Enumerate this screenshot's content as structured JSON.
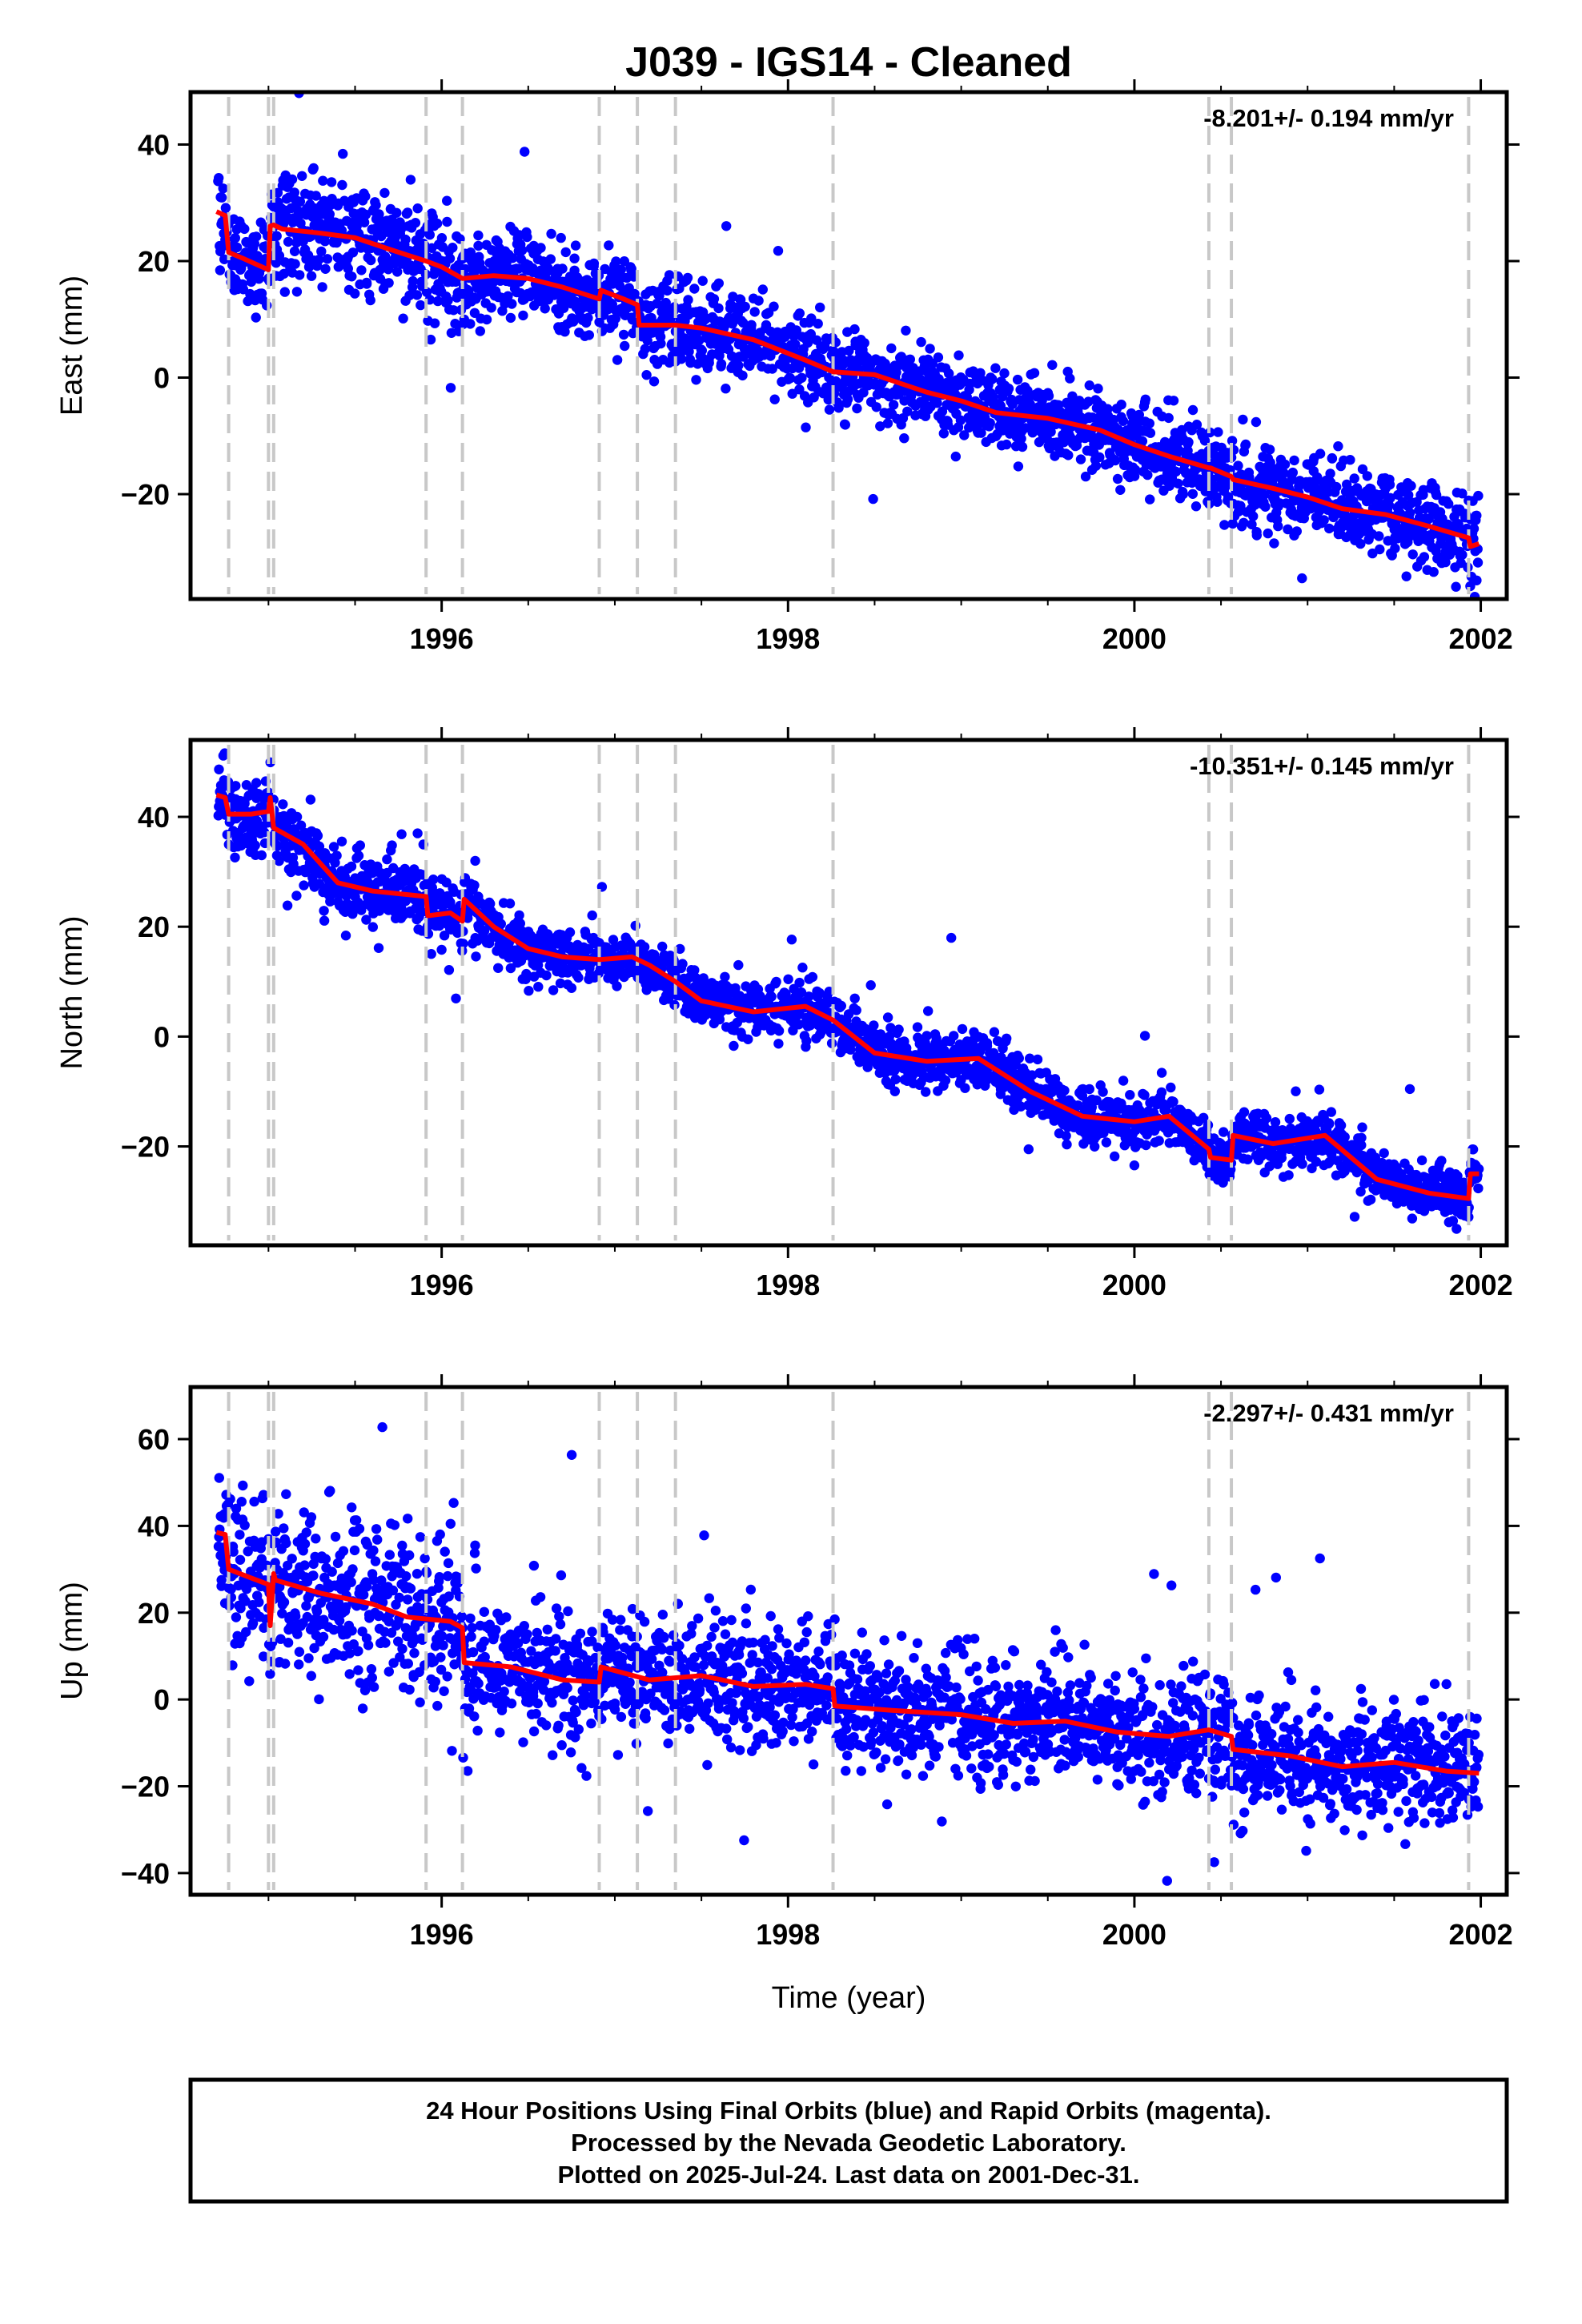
{
  "title": "J039  - IGS14 - Cleaned",
  "xlabel": "Time (year)",
  "footer": [
    "24 Hour Positions Using Final Orbits (blue) and Rapid Orbits (magenta).",
    "Processed by the Nevada Geodetic Laboratory.",
    "Plotted on 2025-Jul-24. Last data on 2001-Dec-31."
  ],
  "colors": {
    "points": "#0000ff",
    "model": "#ff0000",
    "steps": "#c8c8c8",
    "frame": "#000000"
  },
  "chart_data": [
    {
      "type": "scatter",
      "ylabel": "East (mm)",
      "rate_label": "-8.201+/- 0.194 mm/yr",
      "xlim": [
        1994.55,
        2002.15
      ],
      "ylim": [
        -38,
        49
      ],
      "x_ticks": [
        1996,
        1998,
        2000,
        2002
      ],
      "y_ticks": [
        -20,
        0,
        20,
        40
      ],
      "step_epochs": [
        1994.77,
        1995.0,
        1995.03,
        1995.91,
        1996.12,
        1996.91,
        1997.13,
        1997.35,
        1998.26,
        2000.43,
        2000.56,
        2001.93
      ],
      "model": {
        "x": [
          1994.7,
          1994.75,
          1994.77,
          1994.85,
          1995.0,
          1995.01,
          1995.03,
          1995.08,
          1995.3,
          1995.5,
          1995.7,
          1995.91,
          1996.0,
          1996.12,
          1996.3,
          1996.5,
          1996.7,
          1996.91,
          1996.92,
          1997.05,
          1997.13,
          1997.14,
          1997.35,
          1997.5,
          1997.8,
          1998.1,
          1998.26,
          1998.5,
          1998.8,
          1999.0,
          1999.2,
          1999.5,
          1999.8,
          2000.0,
          2000.2,
          2000.43,
          2000.44,
          2000.56,
          2000.57,
          2000.8,
          2001.0,
          2001.2,
          2001.45,
          2001.7,
          2001.93,
          2001.94,
          2001.99
        ],
        "y": [
          28.5,
          27.8,
          21.5,
          20.5,
          18.5,
          26.0,
          26.2,
          25.5,
          24.8,
          24.0,
          22.0,
          20.0,
          19.0,
          17.0,
          17.5,
          17.0,
          15.5,
          13.5,
          15.0,
          13.5,
          12.5,
          9.0,
          9.0,
          8.5,
          6.5,
          3.0,
          1.0,
          0.5,
          -2.5,
          -4.0,
          -6.0,
          -7.0,
          -9.0,
          -11.5,
          -13.5,
          -15.5,
          -15.5,
          -17.0,
          -17.5,
          -19.0,
          -20.5,
          -22.5,
          -23.5,
          -25.5,
          -27.5,
          -29.0,
          -28.5
        ]
      },
      "points_summary": {
        "description": "daily positions",
        "count_approx": 2500,
        "scatter_mm": 3.5
      }
    },
    {
      "type": "scatter",
      "ylabel": "North (mm)",
      "rate_label": "-10.351+/- 0.145 mm/yr",
      "xlim": [
        1994.55,
        2002.15
      ],
      "ylim": [
        -38,
        54
      ],
      "x_ticks": [
        1996,
        1998,
        2000,
        2002
      ],
      "y_ticks": [
        -20,
        0,
        20,
        40
      ],
      "step_epochs": [
        1994.77,
        1995.0,
        1995.03,
        1995.91,
        1996.12,
        1996.91,
        1997.13,
        1997.35,
        1998.26,
        2000.43,
        2000.56,
        2001.93
      ],
      "model": {
        "x": [
          1994.7,
          1994.75,
          1994.77,
          1994.9,
          1995.0,
          1995.01,
          1995.03,
          1995.2,
          1995.4,
          1995.6,
          1995.91,
          1995.92,
          1996.05,
          1996.12,
          1996.13,
          1996.3,
          1996.5,
          1996.7,
          1996.91,
          1997.1,
          1997.2,
          1997.35,
          1997.5,
          1997.8,
          1998.1,
          1998.26,
          1998.5,
          1998.8,
          1999.1,
          1999.4,
          1999.7,
          2000.0,
          2000.2,
          2000.43,
          2000.44,
          2000.56,
          2000.57,
          2000.8,
          2001.1,
          2001.4,
          2001.7,
          2001.93,
          2001.94,
          2001.99
        ],
        "y": [
          44.0,
          43.5,
          40.5,
          40.5,
          41.0,
          43.5,
          38.0,
          35.0,
          28.0,
          26.5,
          25.5,
          22.0,
          22.5,
          21.0,
          25.0,
          20.0,
          16.0,
          14.5,
          14.0,
          14.5,
          13.0,
          10.0,
          6.5,
          4.5,
          5.5,
          3.0,
          -3.0,
          -4.5,
          -4.0,
          -10.0,
          -14.5,
          -15.5,
          -14.5,
          -20.5,
          -22.0,
          -22.5,
          -18.0,
          -19.5,
          -18.0,
          -26.0,
          -28.5,
          -29.5,
          -25.0,
          -25.0
        ]
      },
      "points_summary": {
        "description": "daily positions",
        "count_approx": 2500,
        "scatter_mm": 2.5
      }
    },
    {
      "type": "scatter",
      "ylabel": "Up (mm)",
      "rate_label": "-2.297+/- 0.431 mm/yr",
      "xlim": [
        1994.55,
        2002.15
      ],
      "ylim": [
        -45,
        72
      ],
      "x_ticks": [
        1996,
        1998,
        2000,
        2002
      ],
      "y_ticks": [
        -40,
        -20,
        0,
        20,
        40,
        60
      ],
      "step_epochs": [
        1994.77,
        1995.0,
        1995.03,
        1995.91,
        1996.12,
        1996.91,
        1997.13,
        1997.35,
        1998.26,
        2000.43,
        2000.56,
        2001.93
      ],
      "model": {
        "x": [
          1994.7,
          1994.75,
          1994.77,
          1994.9,
          1995.0,
          1995.01,
          1995.03,
          1995.04,
          1995.3,
          1995.6,
          1995.8,
          1996.05,
          1996.12,
          1996.13,
          1996.4,
          1996.7,
          1996.91,
          1996.92,
          1997.2,
          1997.5,
          1997.8,
          1998.1,
          1998.26,
          1998.27,
          1998.6,
          1999.0,
          1999.3,
          1999.6,
          1999.9,
          2000.2,
          2000.43,
          2000.56,
          2000.57,
          2000.9,
          2001.2,
          2001.5,
          2001.8,
          2001.99
        ],
        "y": [
          38.5,
          38.0,
          30.0,
          28.0,
          26.5,
          17.0,
          29.0,
          27.5,
          24.5,
          22.0,
          19.0,
          18.0,
          16.5,
          8.5,
          7.5,
          4.5,
          4.0,
          7.5,
          4.5,
          5.5,
          3.0,
          3.5,
          2.5,
          -1.5,
          -2.5,
          -3.5,
          -5.5,
          -5.0,
          -7.5,
          -8.5,
          -7.0,
          -8.5,
          -11.5,
          -13.0,
          -15.5,
          -14.5,
          -16.5,
          -17.0
        ]
      },
      "points_summary": {
        "description": "daily positions",
        "count_approx": 2500,
        "scatter_mm": 7.0
      }
    }
  ]
}
